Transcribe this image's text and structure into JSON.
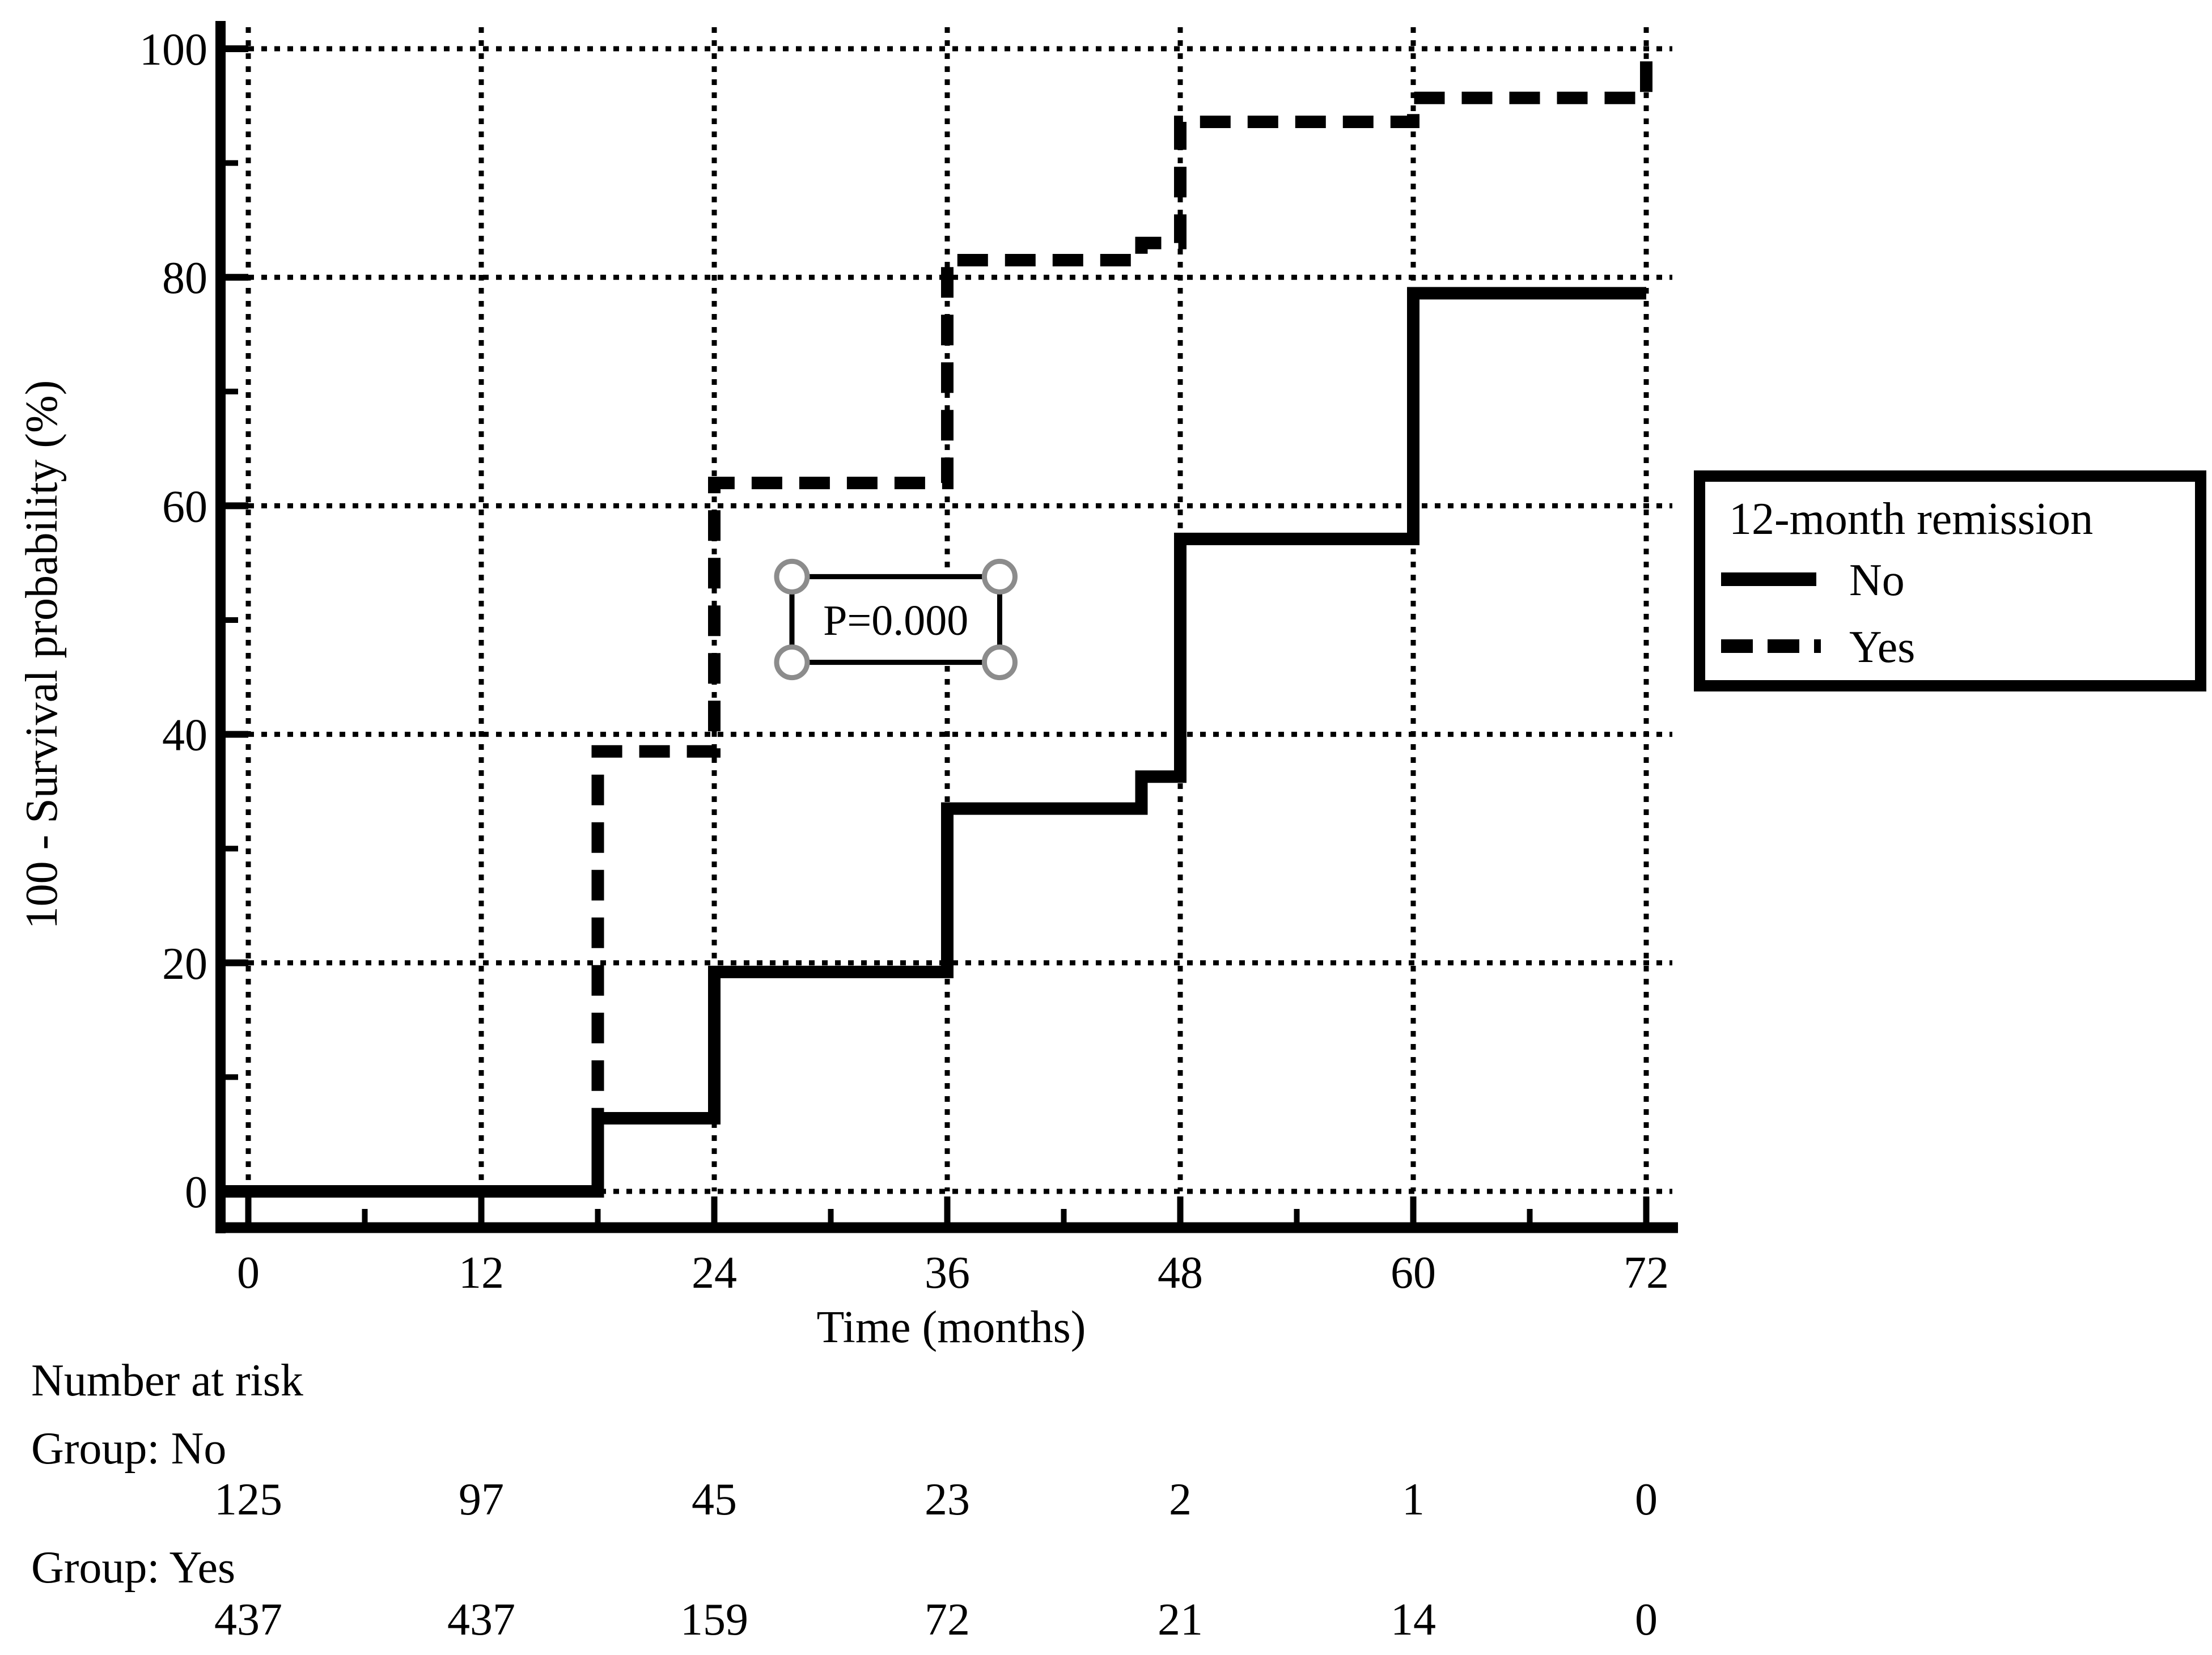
{
  "chart_data": {
    "type": "line",
    "subtype": "kaplan-meier-step-plot",
    "title": "",
    "xlabel": "Time (months)",
    "ylabel": "100 - Survival probability (%)",
    "xlim": [
      0,
      72
    ],
    "ylim": [
      0,
      100
    ],
    "xticks": [
      0,
      12,
      24,
      36,
      48,
      60,
      72
    ],
    "yticks": [
      0,
      20,
      40,
      60,
      80,
      100
    ],
    "x_minor_tick_step": 6,
    "y_minor_tick_step": 10,
    "grid": "dotted lines at major ticks, both directions",
    "legend": {
      "title": "12-month remission",
      "position": "right",
      "entries": [
        {
          "label": "No",
          "line_style": "solid",
          "color": "#000000"
        },
        {
          "label": "Yes",
          "line_style": "dashed",
          "color": "#000000"
        }
      ]
    },
    "annotation": {
      "text": "P=0.000",
      "x_months_range": [
        28.0,
        38.7
      ],
      "y_percent_range": [
        46.3,
        53.8
      ],
      "selection_handles": true,
      "handle_color": "#8c8c8c"
    },
    "series": [
      {
        "name": "Yes",
        "line_style": "dashed",
        "color": "#000000",
        "points": [
          [
            -1.35,
            0
          ],
          [
            18,
            0
          ],
          [
            18,
            38.5
          ],
          [
            24,
            38.5
          ],
          [
            24,
            62
          ],
          [
            36,
            62
          ],
          [
            36,
            81.5
          ],
          [
            46,
            81.5
          ],
          [
            46,
            83
          ],
          [
            48,
            83
          ],
          [
            48,
            93.6
          ],
          [
            60,
            93.6
          ],
          [
            60,
            95.7
          ],
          [
            72,
            95.7
          ],
          [
            72,
            99.5
          ]
        ]
      },
      {
        "name": "No",
        "line_style": "solid",
        "color": "#000000",
        "points": [
          [
            -1.35,
            0
          ],
          [
            18,
            0
          ],
          [
            18,
            6.4
          ],
          [
            24,
            6.4
          ],
          [
            24,
            19.2
          ],
          [
            36,
            19.2
          ],
          [
            36,
            33.5
          ],
          [
            46,
            33.5
          ],
          [
            46,
            36.3
          ],
          [
            48,
            36.3
          ],
          [
            48,
            57.1
          ],
          [
            60,
            57.1
          ],
          [
            60,
            78.6
          ],
          [
            72,
            78.6
          ]
        ]
      }
    ],
    "risk_table": {
      "title": "Number at risk",
      "time_points": [
        0,
        12,
        24,
        36,
        48,
        60,
        72
      ],
      "groups": [
        {
          "label": "Group: No",
          "values": [
            "125",
            "97",
            "45",
            "23",
            "2",
            "1",
            "0"
          ]
        },
        {
          "label": "Group: Yes",
          "values": [
            "437",
            "437",
            "159",
            "72",
            "21",
            "14",
            "0"
          ]
        }
      ]
    },
    "colors": {
      "foreground": "#000000",
      "background": "#ffffff"
    }
  }
}
